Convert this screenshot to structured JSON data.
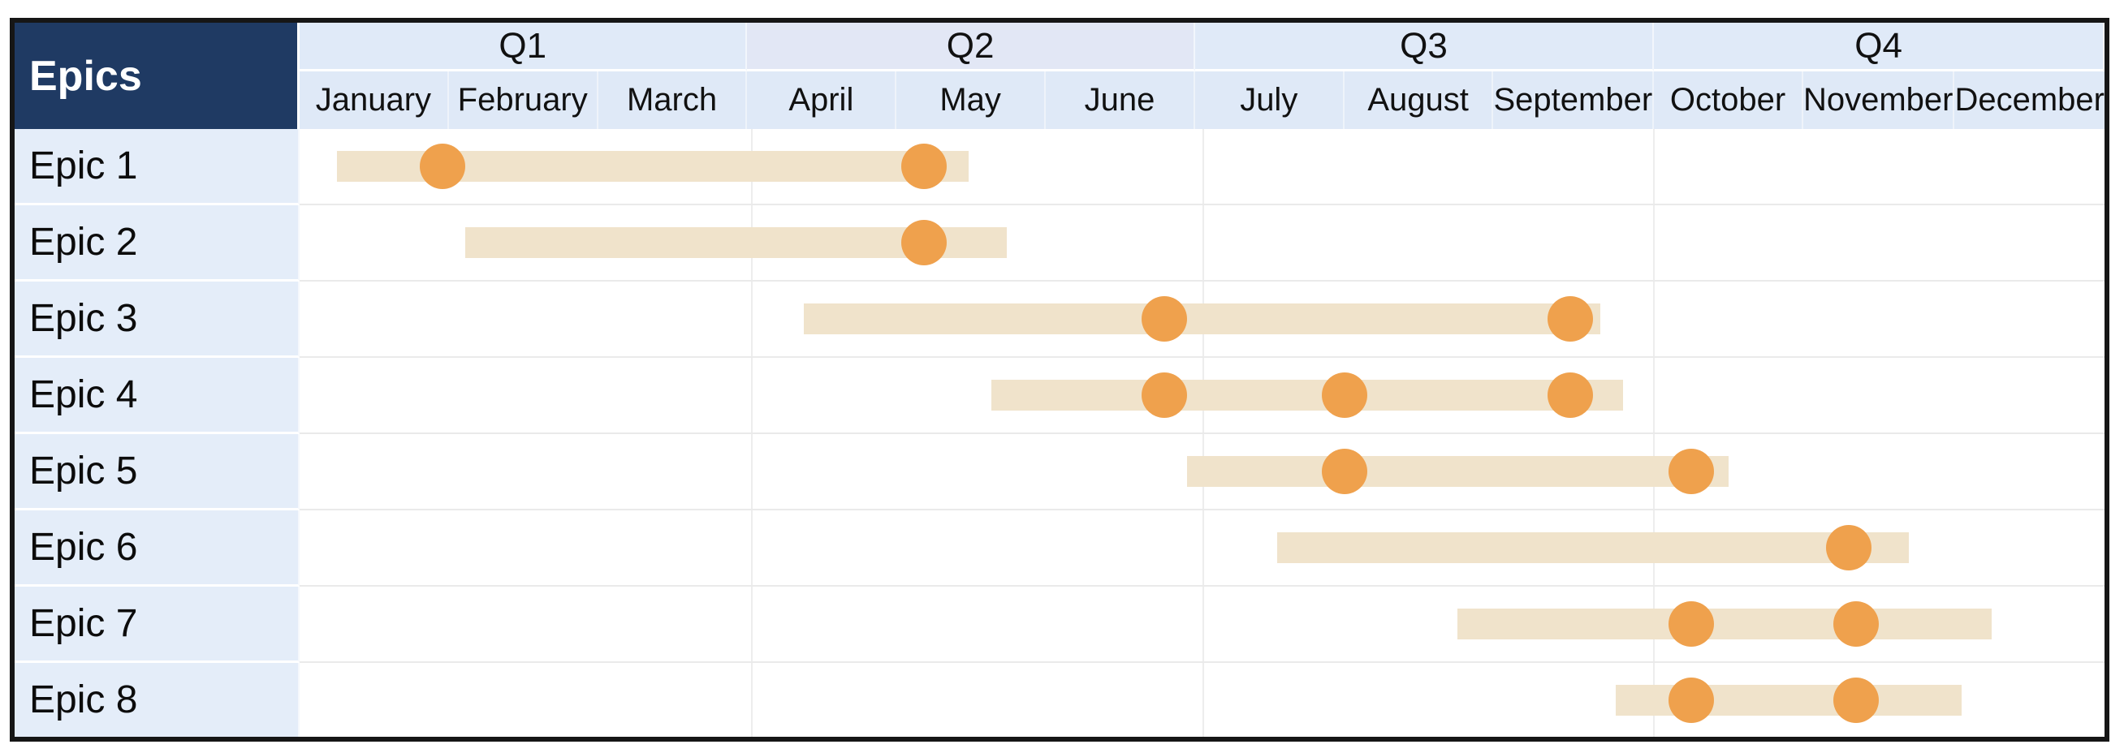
{
  "chart_data": {
    "type": "gantt",
    "title": "Epics",
    "legend_position": "none",
    "grid": "quarter-boundaries-only",
    "x_axis": {
      "unit": "months",
      "range": [
        0,
        12
      ],
      "quarters": [
        "Q1",
        "Q2",
        "Q3",
        "Q4"
      ],
      "months": [
        "January",
        "February",
        "March",
        "April",
        "May",
        "June",
        "July",
        "August",
        "September",
        "October",
        "November",
        "December"
      ]
    },
    "rows": [
      {
        "label": "Epic 1",
        "bar_start_month": 0.25,
        "bar_end_month": 4.45,
        "milestones_month": [
          0.95,
          4.15
        ]
      },
      {
        "label": "Epic 2",
        "bar_start_month": 1.1,
        "bar_end_month": 4.7,
        "milestones_month": [
          4.15
        ]
      },
      {
        "label": "Epic 3",
        "bar_start_month": 3.35,
        "bar_end_month": 8.65,
        "milestones_month": [
          5.75,
          8.45
        ]
      },
      {
        "label": "Epic 4",
        "bar_start_month": 4.6,
        "bar_end_month": 8.8,
        "milestones_month": [
          5.75,
          6.95,
          8.45
        ]
      },
      {
        "label": "Epic 5",
        "bar_start_month": 5.9,
        "bar_end_month": 9.5,
        "milestones_month": [
          6.95,
          9.25
        ]
      },
      {
        "label": "Epic 6",
        "bar_start_month": 6.5,
        "bar_end_month": 10.7,
        "milestones_month": [
          10.3
        ]
      },
      {
        "label": "Epic 7",
        "bar_start_month": 7.7,
        "bar_end_month": 11.25,
        "milestones_month": [
          9.25,
          10.35
        ]
      },
      {
        "label": "Epic 8",
        "bar_start_month": 8.75,
        "bar_end_month": 11.05,
        "milestones_month": [
          9.25,
          10.35
        ]
      }
    ],
    "colors": {
      "corner_header_bg": "#1F3A63",
      "corner_header_text": "#FFFFFF",
      "quarter_header_bg": "#E0EAF8",
      "quarter2_header_bg": "#E2E7F5",
      "month_header_bg": "#DFE9F7",
      "epic_label_bg": "#E4EDF9",
      "bar_fill": "#F0E3CB",
      "milestone_fill": "#EFA14D",
      "row_gridline": "#EAEAEA",
      "quarter_gridline": "#EDEDED",
      "outer_border": "#161616",
      "body_bg": "#FFFFFF"
    }
  }
}
